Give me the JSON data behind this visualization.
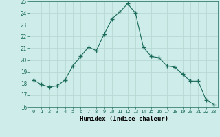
{
  "x": [
    0,
    1,
    2,
    3,
    4,
    5,
    6,
    7,
    8,
    9,
    10,
    11,
    12,
    13,
    14,
    15,
    16,
    17,
    18,
    19,
    20,
    21,
    22,
    23
  ],
  "y": [
    18.3,
    17.9,
    17.7,
    17.8,
    18.3,
    19.5,
    20.3,
    21.1,
    20.8,
    22.2,
    23.5,
    24.1,
    24.8,
    24.0,
    21.1,
    20.3,
    20.2,
    19.5,
    19.4,
    18.8,
    18.2,
    18.2,
    16.6,
    16.2
  ],
  "xlim": [
    -0.5,
    23.5
  ],
  "ylim": [
    16,
    25
  ],
  "yticks": [
    16,
    17,
    18,
    19,
    20,
    21,
    22,
    23,
    24,
    25
  ],
  "xticks": [
    0,
    1,
    2,
    3,
    4,
    5,
    6,
    7,
    8,
    9,
    10,
    11,
    12,
    13,
    14,
    15,
    16,
    17,
    18,
    19,
    20,
    21,
    22,
    23
  ],
  "xlabel": "Humidex (Indice chaleur)",
  "line_color": "#1a6b5a",
  "marker": "+",
  "marker_size": 4,
  "bg_color": "#ceecea",
  "grid_color": "#b8d8d4",
  "title": ""
}
